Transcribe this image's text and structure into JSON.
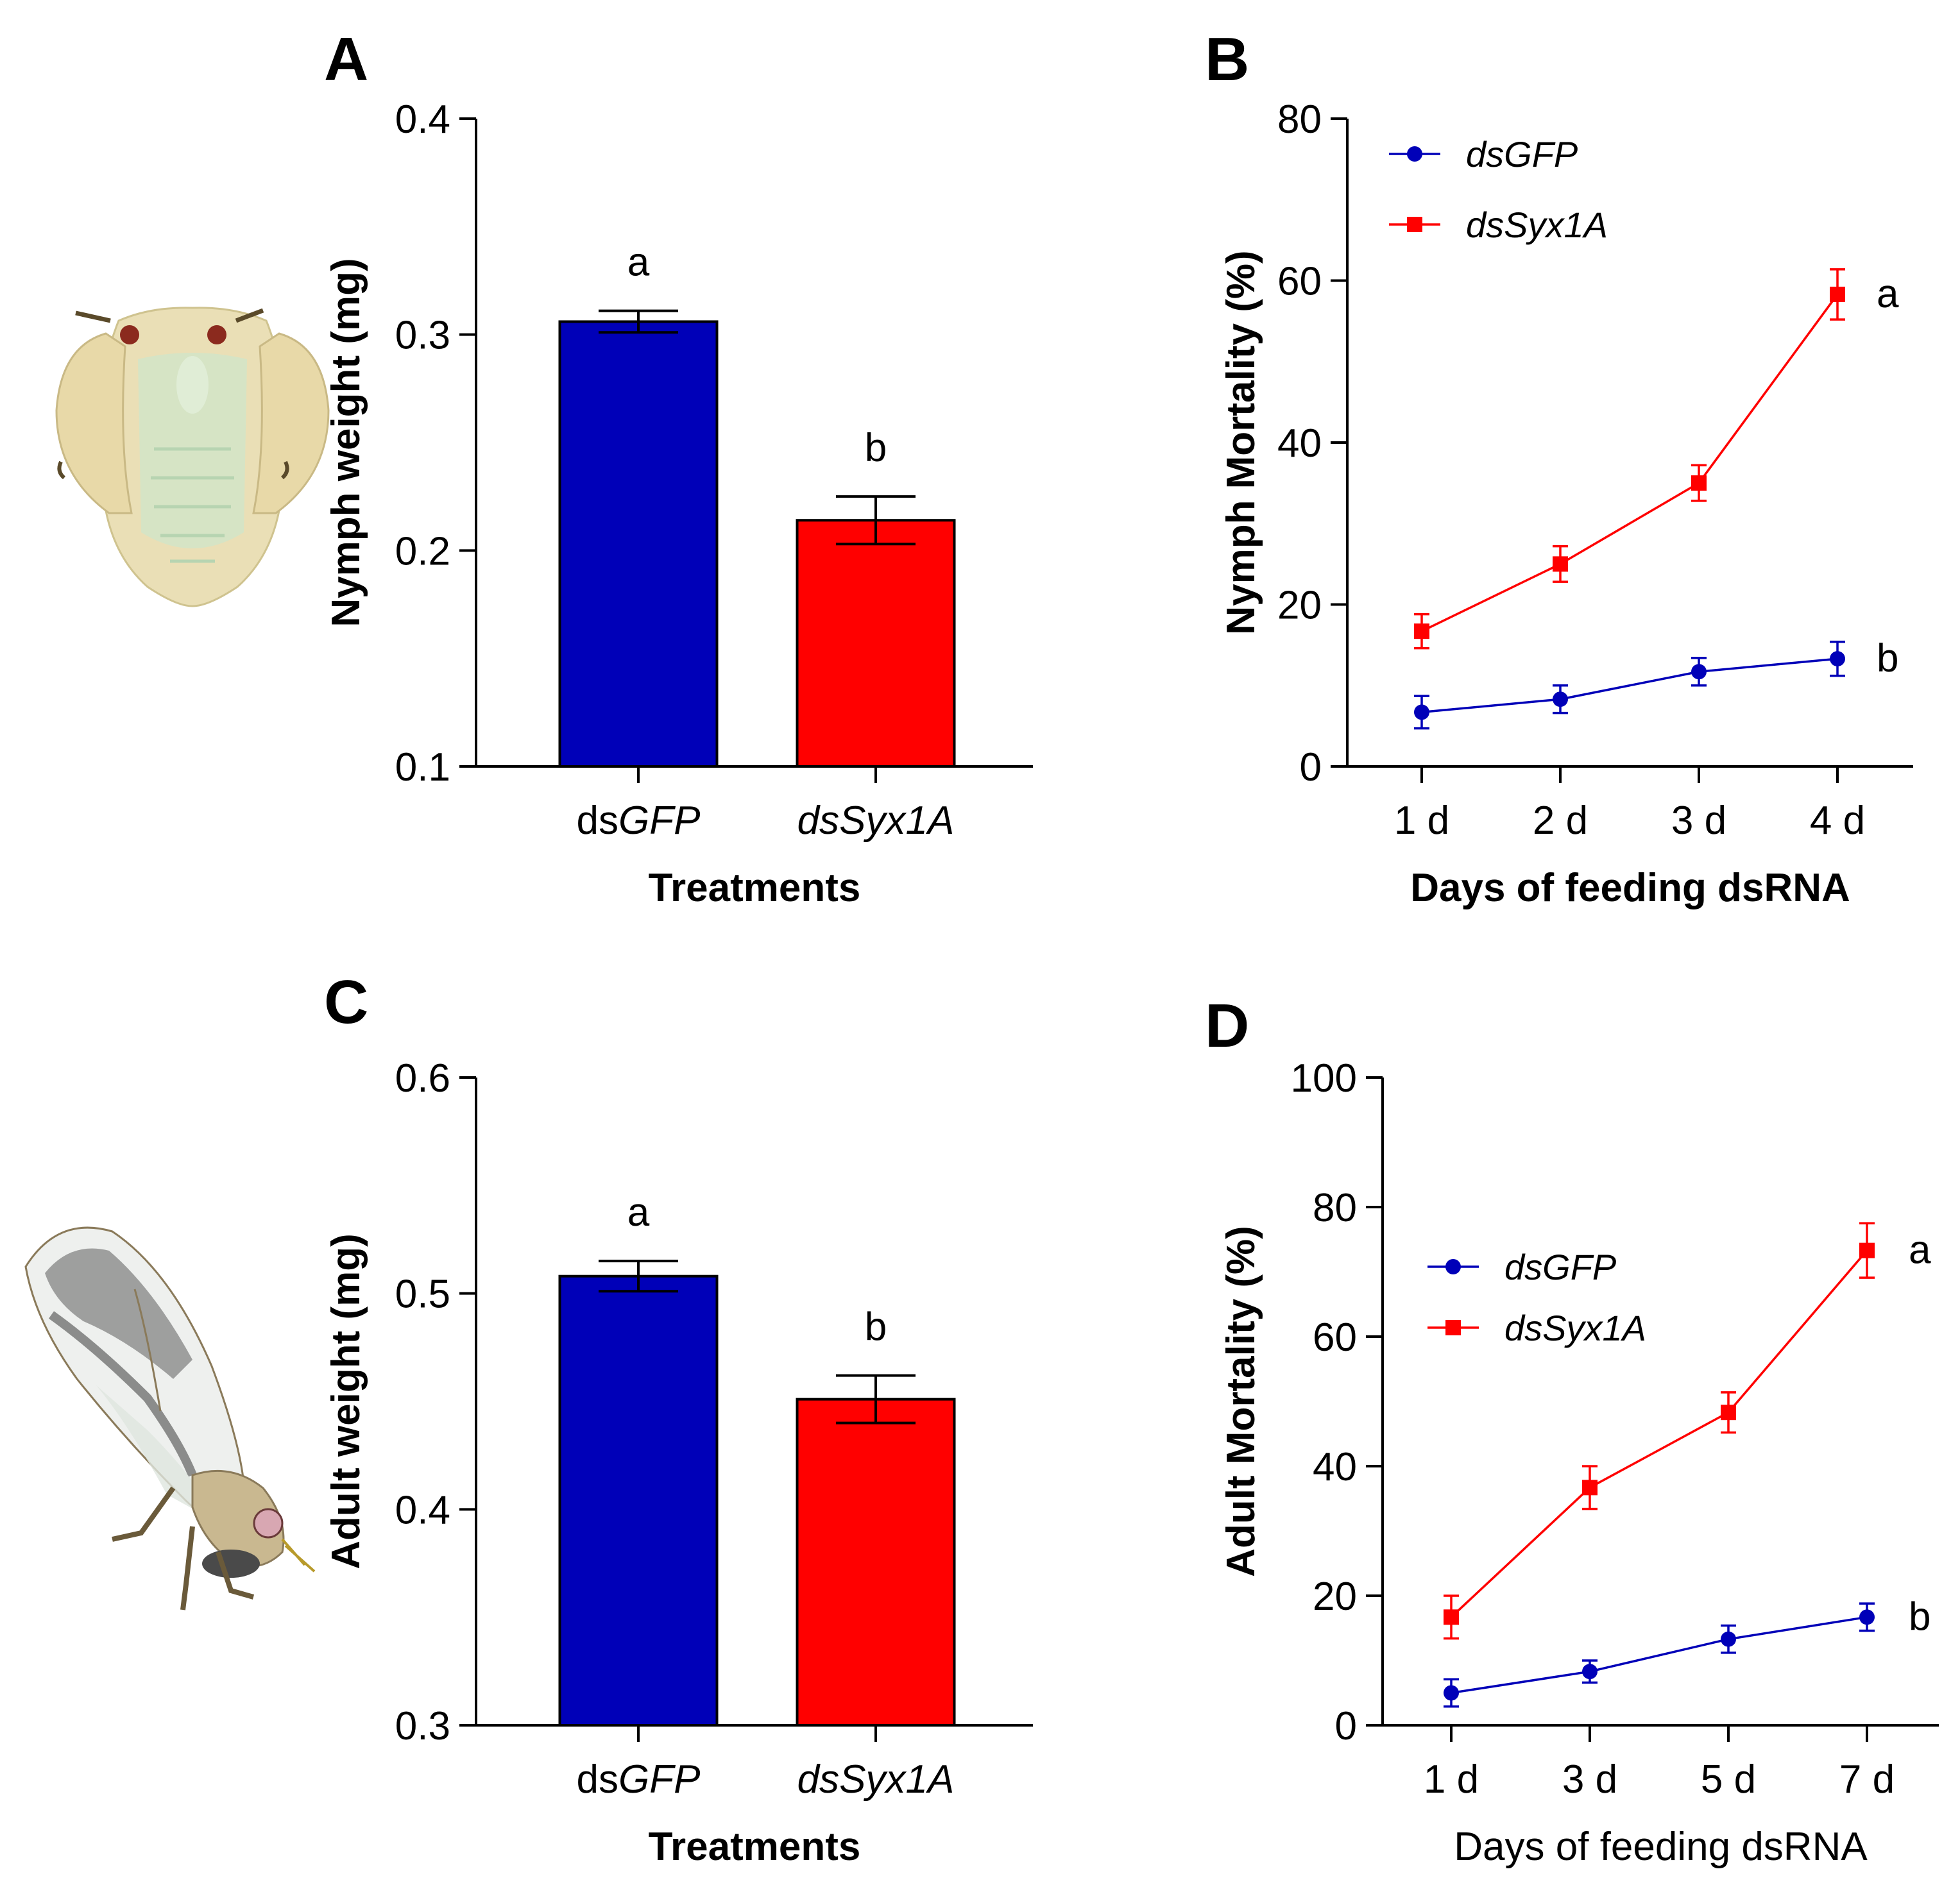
{
  "colors": {
    "dsGFP": "#0000b8",
    "dsSyx1A": "#ff0000",
    "axis": "#000000"
  },
  "icons": {
    "nymph": "whitefly-nymph-illustration",
    "adult": "whitefly-adult-illustration"
  },
  "chart_data": [
    {
      "panel": "A",
      "type": "bar",
      "xlabel": "Treatments",
      "ylabel": "Nymph weight (mg)",
      "ylim": [
        0.1,
        0.4
      ],
      "yticks": [
        "0.1",
        "0.2",
        "0.3",
        "0.4"
      ],
      "categories": [
        {
          "prefix": "ds",
          "italic": "GFP"
        },
        {
          "prefix": "",
          "italic": "dsSyx1A"
        }
      ],
      "values": [
        0.306,
        0.214
      ],
      "errors": [
        0.005,
        0.011
      ],
      "sig": [
        "a",
        "b"
      ]
    },
    {
      "panel": "B",
      "type": "line",
      "xlabel": "Days of feeding dsRNA",
      "xlabel_bold": true,
      "ylabel": "Nymph Mortality (%)",
      "ylim": [
        0,
        80
      ],
      "yticks": [
        "0",
        "20",
        "40",
        "60",
        "80"
      ],
      "categories": [
        "1 d",
        "2 d",
        "3 d",
        "4 d"
      ],
      "legend_position": "top-left",
      "series": [
        {
          "name": "dsGFP",
          "marker": "circle",
          "values": [
            6.7,
            8.3,
            11.7,
            13.3
          ],
          "errors": [
            2.0,
            1.7,
            1.7,
            2.1
          ],
          "sig": "b"
        },
        {
          "name": "dsSyx1A",
          "marker": "square",
          "values": [
            16.7,
            25.0,
            35.0,
            58.3
          ],
          "errors": [
            2.1,
            2.2,
            2.2,
            3.1
          ],
          "sig": "a"
        }
      ]
    },
    {
      "panel": "C",
      "type": "bar",
      "xlabel": "Treatments",
      "ylabel": "Adult weight (mg)",
      "ylim": [
        0.3,
        0.6
      ],
      "yticks": [
        "0.3",
        "0.4",
        "0.5",
        "0.6"
      ],
      "categories": [
        {
          "prefix": "ds",
          "italic": "GFP"
        },
        {
          "prefix": "",
          "italic": "dsSyx1A"
        }
      ],
      "values": [
        0.508,
        0.451
      ],
      "errors": [
        0.007,
        0.011
      ],
      "sig": [
        "a",
        "b"
      ]
    },
    {
      "panel": "D",
      "type": "line",
      "xlabel": "Days of feeding dsRNA",
      "xlabel_bold": false,
      "ylabel": "Adult Mortality (%)",
      "ylim": [
        0,
        100
      ],
      "yticks": [
        "0",
        "20",
        "40",
        "60",
        "80",
        "100"
      ],
      "categories": [
        "1 d",
        "3 d",
        "5 d",
        "7 d"
      ],
      "legend_position": "middle-left",
      "series": [
        {
          "name": "dsGFP",
          "marker": "circle",
          "values": [
            5.0,
            8.3,
            13.3,
            16.7
          ],
          "errors": [
            2.1,
            1.7,
            2.1,
            2.1
          ],
          "sig": "b"
        },
        {
          "name": "dsSyx1A",
          "marker": "square",
          "values": [
            16.7,
            36.7,
            48.3,
            73.3
          ],
          "errors": [
            3.3,
            3.3,
            3.1,
            4.2
          ],
          "sig": "a"
        }
      ]
    }
  ]
}
